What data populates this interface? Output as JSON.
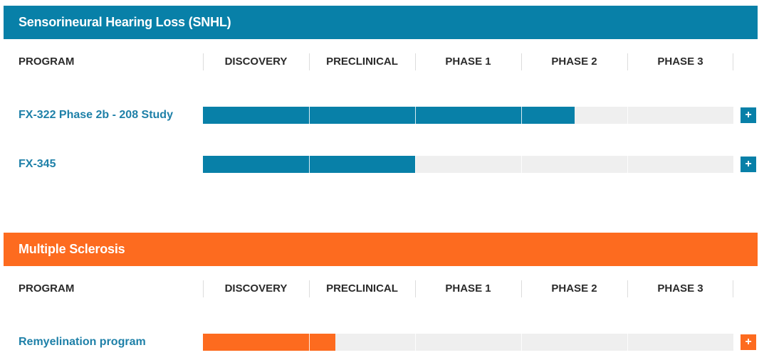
{
  "sections": [
    {
      "id": "snhl",
      "title": "Sensorineural Hearing Loss (SNHL)",
      "color": "#0880a8",
      "program_header": "PROGRAM",
      "stages": [
        "DISCOVERY",
        "PRECLINICAL",
        "PHASE 1",
        "PHASE 2",
        "PHASE 3"
      ],
      "programs": [
        {
          "name": "FX-322 Phase 2b - 208 Study",
          "progress_stages": 3.5,
          "expand_label": "+"
        },
        {
          "name": "FX-345",
          "progress_stages": 2,
          "expand_label": "+"
        }
      ]
    },
    {
      "id": "ms",
      "title": "Multiple Sclerosis",
      "color": "#fd6b1f",
      "program_header": "PROGRAM",
      "stages": [
        "DISCOVERY",
        "PRECLINICAL",
        "PHASE 1",
        "PHASE 2",
        "PHASE 3"
      ],
      "programs": [
        {
          "name": "Remyelination program",
          "progress_stages": 1.25,
          "expand_label": "+"
        }
      ]
    }
  ]
}
